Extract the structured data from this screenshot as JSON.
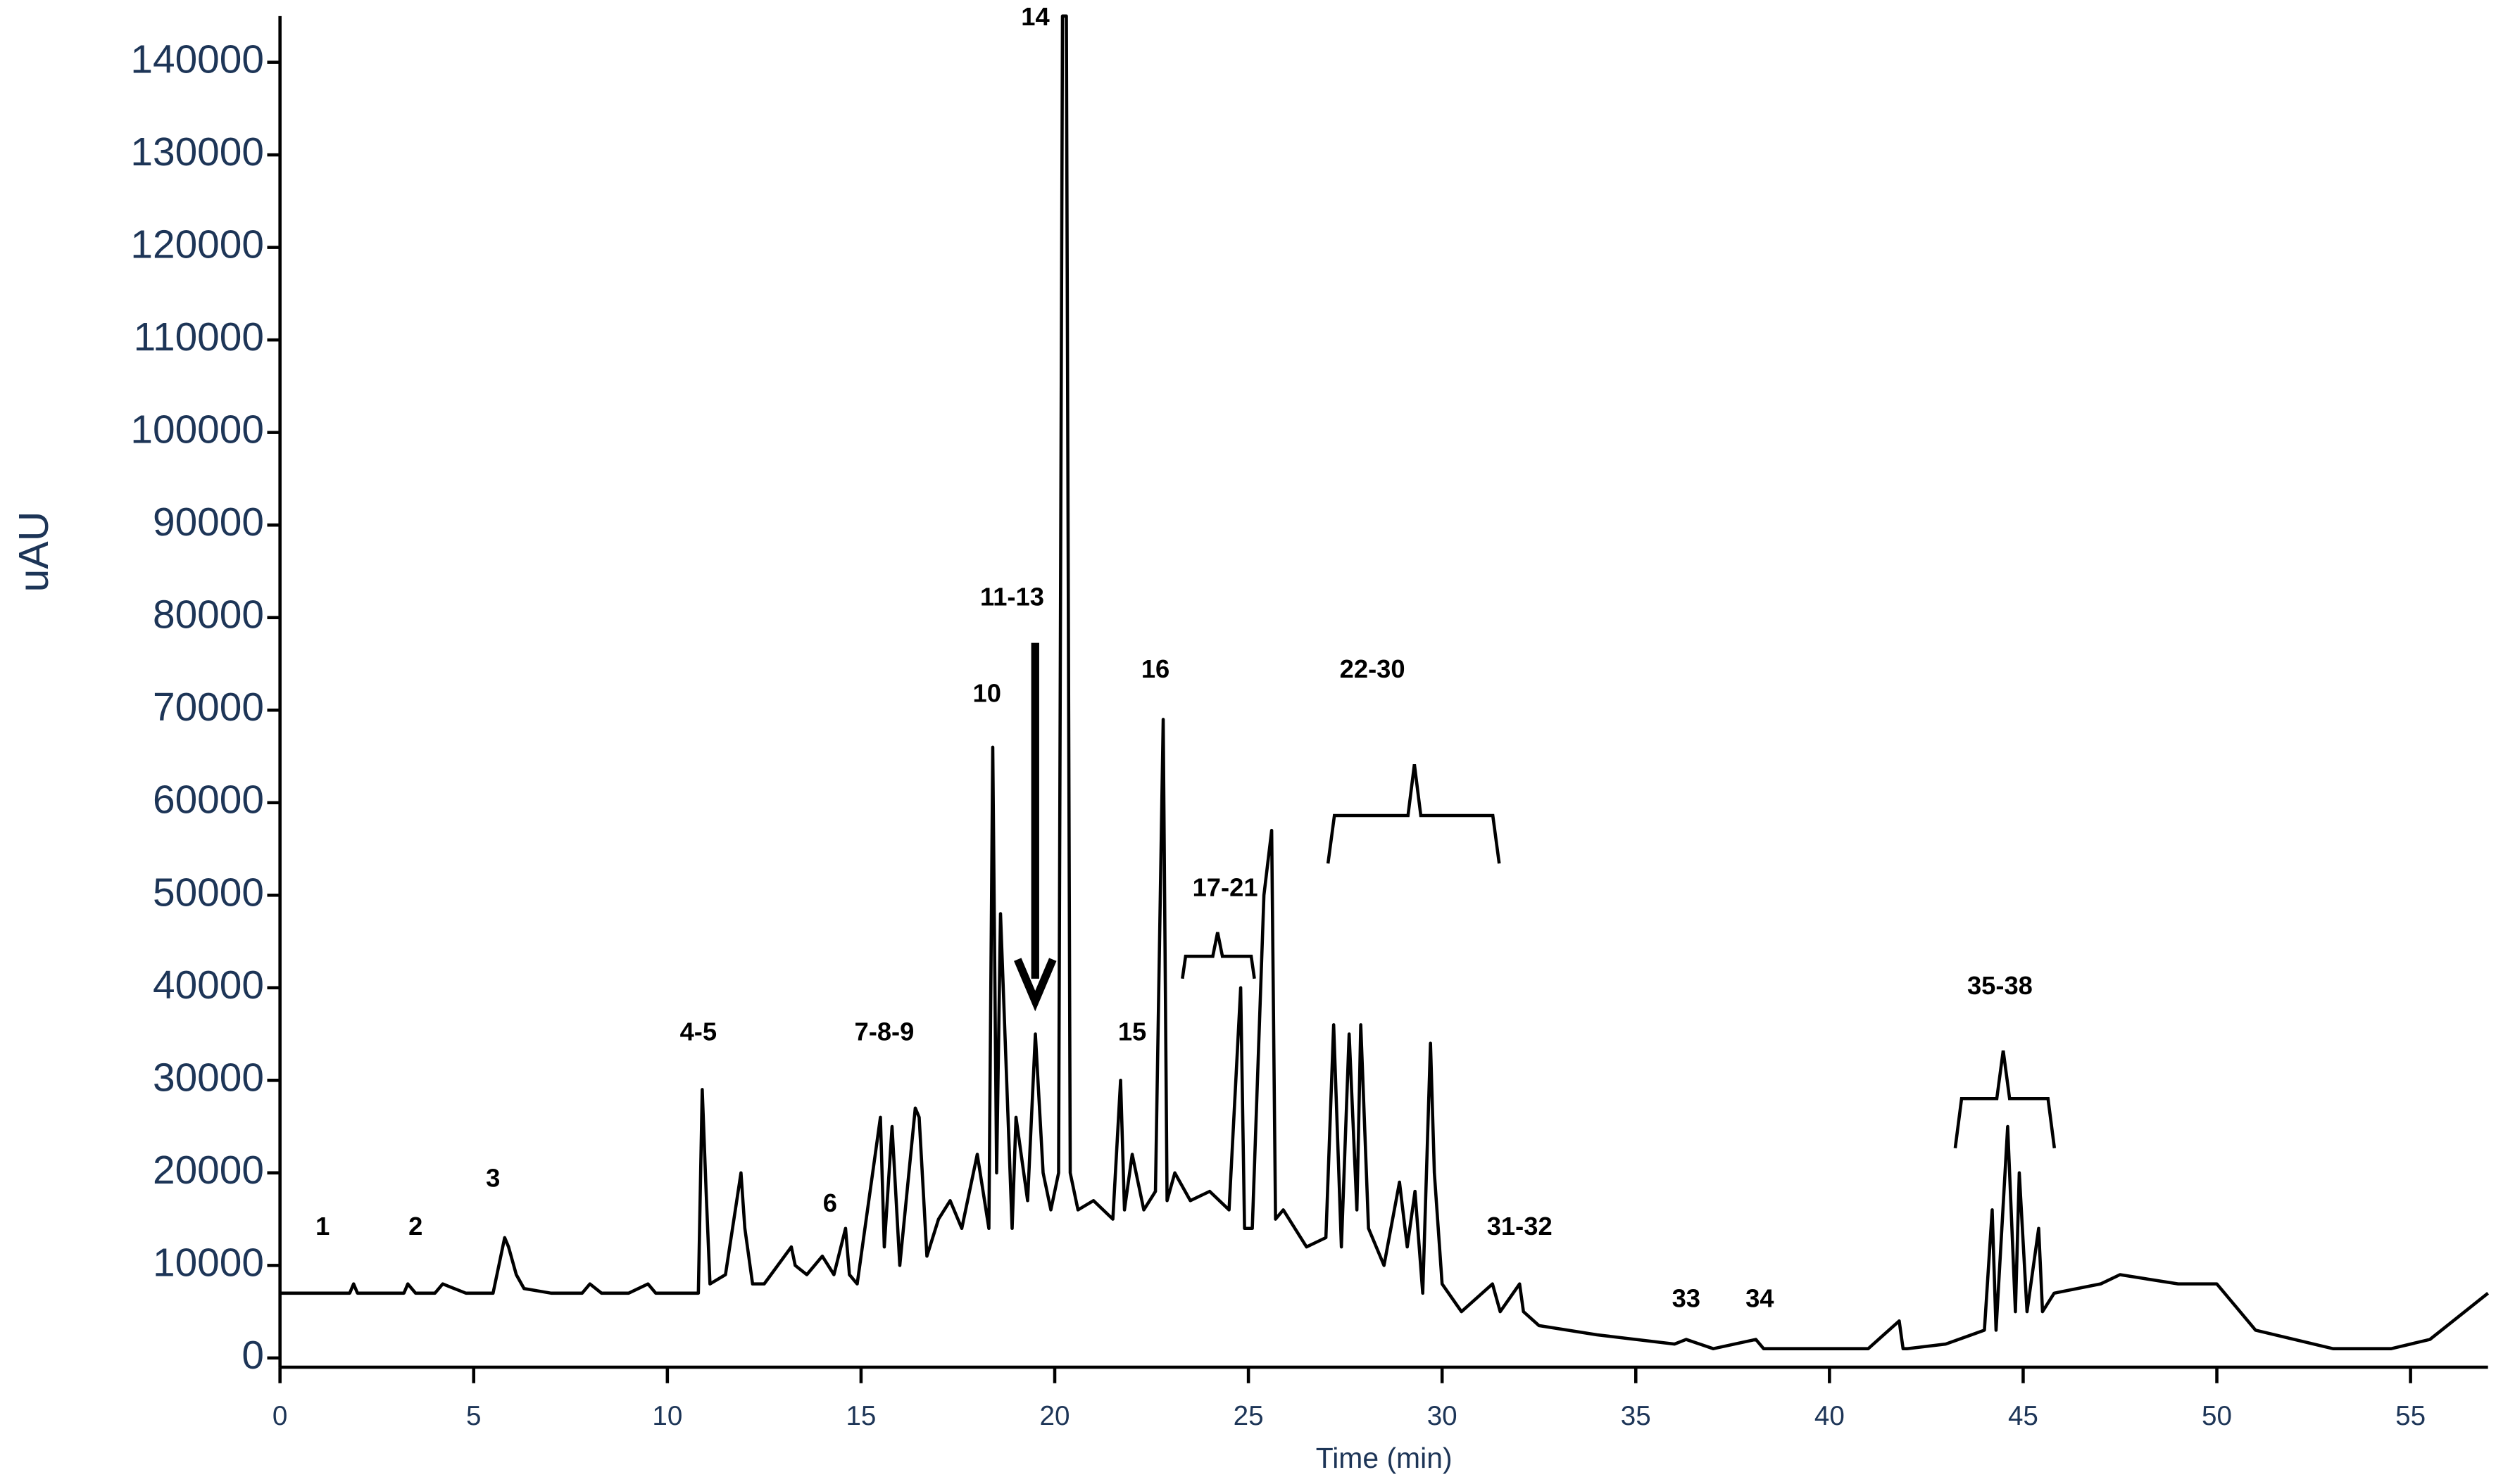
{
  "chart_data": {
    "type": "line",
    "xlabel": "Time (min)",
    "ylabel": "uAU",
    "color": "#000000",
    "x": [
      0,
      1.8,
      1.9,
      2.0,
      3.2,
      3.3,
      3.5,
      4.0,
      4.2,
      4.8,
      5.0,
      5.5,
      5.8,
      5.9,
      6.1,
      6.3,
      7.0,
      7.8,
      8.0,
      8.3,
      9.0,
      9.5,
      9.7,
      10.8,
      10.9,
      11.0,
      11.1,
      11.5,
      11.9,
      12.0,
      12.2,
      12.5,
      13.2,
      13.3,
      13.6,
      14.0,
      14.3,
      14.6,
      14.7,
      14.9,
      15.5,
      15.6,
      15.8,
      16.0,
      16.4,
      16.5,
      16.7,
      17.0,
      17.3,
      17.6,
      18.0,
      18.3,
      18.4,
      18.5,
      18.6,
      18.9,
      19.0,
      19.3,
      19.5,
      19.7,
      19.9,
      20.1,
      20.2,
      20.3,
      20.4,
      20.6,
      21.0,
      21.5,
      21.7,
      21.8,
      22.0,
      22.3,
      22.6,
      22.8,
      22.9,
      23.1,
      23.5,
      24.0,
      24.5,
      24.8,
      24.9,
      25.1,
      25.4,
      25.6,
      25.7,
      25.9,
      26.5,
      27.0,
      27.2,
      27.4,
      27.6,
      27.8,
      27.9,
      28.1,
      28.5,
      28.9,
      29.1,
      29.3,
      29.5,
      29.7,
      29.8,
      30.0,
      30.5,
      31.3,
      31.5,
      32.0,
      32.1,
      32.5,
      34,
      36,
      36.3,
      37,
      38.1,
      38.3,
      39,
      41,
      41.8,
      41.9,
      42,
      43,
      44,
      44.2,
      44.3,
      44.6,
      44.8,
      44.9,
      45.1,
      45.4,
      45.5,
      45.8,
      47,
      47.5,
      49,
      50,
      51,
      53,
      54.5,
      55.5,
      57
    ],
    "values": [
      7000,
      7000,
      8000,
      7000,
      7000,
      8000,
      7000,
      7000,
      8000,
      7000,
      7000,
      7000,
      13000,
      12000,
      9000,
      7500,
      7000,
      7000,
      8000,
      7000,
      7000,
      8000,
      7000,
      7000,
      29000,
      18000,
      8000,
      9000,
      20000,
      14000,
      8000,
      8000,
      12000,
      10000,
      9000,
      11000,
      9000,
      14000,
      9000,
      8000,
      26000,
      12000,
      25000,
      10000,
      27000,
      26000,
      11000,
      15000,
      17000,
      14000,
      22000,
      14000,
      66000,
      20000,
      48000,
      14000,
      26000,
      17000,
      35000,
      20000,
      16000,
      20000,
      145000,
      145000,
      20000,
      16000,
      17000,
      15000,
      30000,
      16000,
      22000,
      16000,
      18000,
      69000,
      17000,
      20000,
      17000,
      18000,
      16000,
      40000,
      14000,
      14000,
      50000,
      57000,
      15000,
      16000,
      12000,
      13000,
      36000,
      12000,
      35000,
      16000,
      36000,
      14000,
      10000,
      19000,
      12000,
      18000,
      7000,
      34000,
      20000,
      8000,
      5000,
      8000,
      5000,
      8000,
      5000,
      3500,
      2500,
      1500,
      2000,
      1000,
      2000,
      1000,
      1000,
      1000,
      4000,
      1000,
      1000,
      1500,
      3000,
      16000,
      3000,
      25000,
      5000,
      20000,
      5000,
      14000,
      5000,
      7000,
      8000,
      9000,
      8000,
      8000,
      3000,
      1000,
      1000,
      2000,
      7000
    ],
    "xlim": [
      0,
      57
    ],
    "xticks": [
      0,
      5,
      10,
      15,
      20,
      25,
      30,
      35,
      40,
      45,
      50,
      55
    ],
    "ylim": [
      -1000,
      145000
    ],
    "yticks": [
      0,
      10000,
      20000,
      30000,
      40000,
      50000,
      60000,
      70000,
      80000,
      90000,
      100000,
      110000,
      120000,
      130000,
      140000
    ],
    "annotations": [
      {
        "text": "1",
        "x": 1.1,
        "y": 13300
      },
      {
        "text": "2",
        "x": 3.5,
        "y": 13300
      },
      {
        "text": "3",
        "x": 5.5,
        "y": 18500
      },
      {
        "text": "4-5",
        "x": 10.8,
        "y": 34300
      },
      {
        "text": "6",
        "x": 14.2,
        "y": 15800
      },
      {
        "text": "7-8-9",
        "x": 15.6,
        "y": 34300
      },
      {
        "text": "10",
        "x": 18.25,
        "y": 70900
      },
      {
        "text": "11-13",
        "x": 18.9,
        "y": 81300
      },
      {
        "text": "14",
        "x": 19.5,
        "y": 144000
      },
      {
        "text": "15",
        "x": 22.0,
        "y": 34300
      },
      {
        "text": "16",
        "x": 22.6,
        "y": 73500
      },
      {
        "text": "17-21",
        "x": 24.4,
        "y": 49900
      },
      {
        "text": "22-30",
        "x": 28.2,
        "y": 73500
      },
      {
        "text": "31-32",
        "x": 32.0,
        "y": 13300
      },
      {
        "text": "33",
        "x": 36.3,
        "y": 5500
      },
      {
        "text": "34",
        "x": 38.2,
        "y": 5500
      },
      {
        "text": "35-38",
        "x": 44.4,
        "y": 39300
      }
    ]
  }
}
